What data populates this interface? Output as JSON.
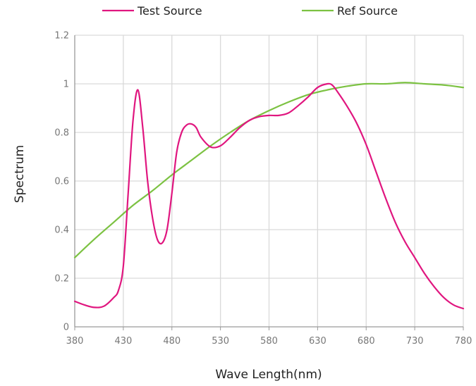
{
  "chart_data": {
    "type": "line",
    "title": "",
    "xlabel": "Wave Length(nm)",
    "ylabel": "Spectrum",
    "xlim": [
      380,
      780
    ],
    "ylim": [
      0,
      1.2
    ],
    "x_ticks": [
      "380",
      "430",
      "480",
      "530",
      "580",
      "630",
      "680",
      "730",
      "780"
    ],
    "y_ticks": [
      "0",
      "0.2",
      "0.4",
      "0.6",
      "0.8",
      "1",
      "1.2"
    ],
    "grid": true,
    "legend_position": "top",
    "series": [
      {
        "name": "Test Source",
        "color": "#e0167f",
        "x": [
          380,
          390,
          400,
          410,
          420,
          425,
          430,
          435,
          440,
          445,
          450,
          455,
          460,
          465,
          470,
          475,
          480,
          485,
          490,
          495,
          500,
          505,
          510,
          520,
          530,
          540,
          550,
          560,
          570,
          580,
          590,
          600,
          610,
          620,
          630,
          640,
          645,
          650,
          660,
          670,
          680,
          690,
          700,
          710,
          720,
          730,
          740,
          750,
          760,
          770,
          780
        ],
        "y": [
          0.105,
          0.09,
          0.08,
          0.085,
          0.12,
          0.15,
          0.25,
          0.55,
          0.85,
          0.975,
          0.82,
          0.6,
          0.45,
          0.36,
          0.345,
          0.4,
          0.55,
          0.72,
          0.8,
          0.83,
          0.835,
          0.82,
          0.78,
          0.74,
          0.745,
          0.78,
          0.82,
          0.85,
          0.865,
          0.87,
          0.87,
          0.88,
          0.91,
          0.945,
          0.985,
          1.0,
          0.995,
          0.97,
          0.91,
          0.84,
          0.75,
          0.64,
          0.53,
          0.43,
          0.35,
          0.285,
          0.22,
          0.165,
          0.12,
          0.09,
          0.075
        ]
      },
      {
        "name": "Ref Source",
        "color": "#7cc242",
        "x": [
          380,
          400,
          420,
          440,
          460,
          480,
          500,
          520,
          540,
          560,
          580,
          600,
          620,
          640,
          660,
          680,
          700,
          720,
          740,
          760,
          780
        ],
        "y": [
          0.285,
          0.36,
          0.43,
          0.5,
          0.56,
          0.625,
          0.685,
          0.745,
          0.8,
          0.85,
          0.89,
          0.925,
          0.955,
          0.975,
          0.99,
          1.0,
          1.0,
          1.005,
          1.0,
          0.995,
          0.985
        ]
      }
    ]
  }
}
